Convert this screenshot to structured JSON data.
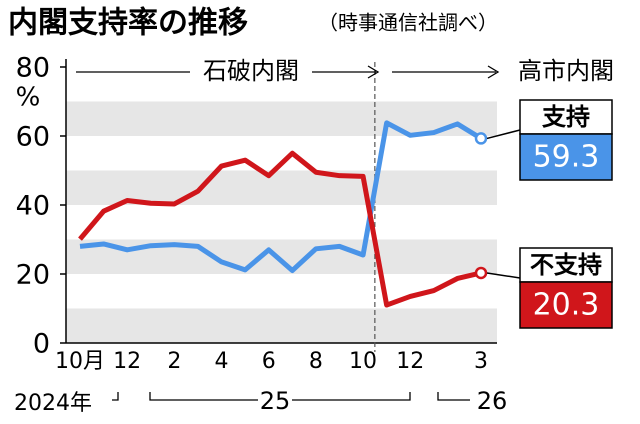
{
  "chart_data": {
    "type": "line",
    "title": "内閣支持率の推移",
    "subtitle": "（時事通信社調べ）",
    "y_unit": "%",
    "annotations": [
      "石破内閣",
      "高市内閣"
    ],
    "categories": [
      "10月",
      null,
      "12",
      null,
      "2",
      null,
      "4",
      null,
      "6",
      null,
      "8",
      null,
      "10",
      null,
      "12",
      null,
      null,
      "3"
    ],
    "years": [
      "2024年",
      "25",
      "26"
    ],
    "series": [
      {
        "name": "支持",
        "color": "#4a94e8",
        "values": [
          28.0,
          28.7,
          27.0,
          28.2,
          28.5,
          28.0,
          23.5,
          21.2,
          27.0,
          21.0,
          27.3,
          28.0,
          25.5,
          63.8,
          60.2,
          61.0,
          63.5,
          59.3
        ]
      },
      {
        "name": "不支持",
        "color": "#d0161b",
        "values": [
          30.1,
          38.2,
          41.3,
          40.5,
          40.3,
          44.0,
          51.3,
          53.0,
          48.5,
          55.0,
          49.5,
          48.5,
          48.3,
          11.0,
          13.5,
          15.2,
          18.7,
          20.3
        ]
      }
    ],
    "ylim": [
      0,
      80
    ],
    "yticks": [
      0,
      20,
      40,
      60,
      80
    ],
    "grid": true
  }
}
